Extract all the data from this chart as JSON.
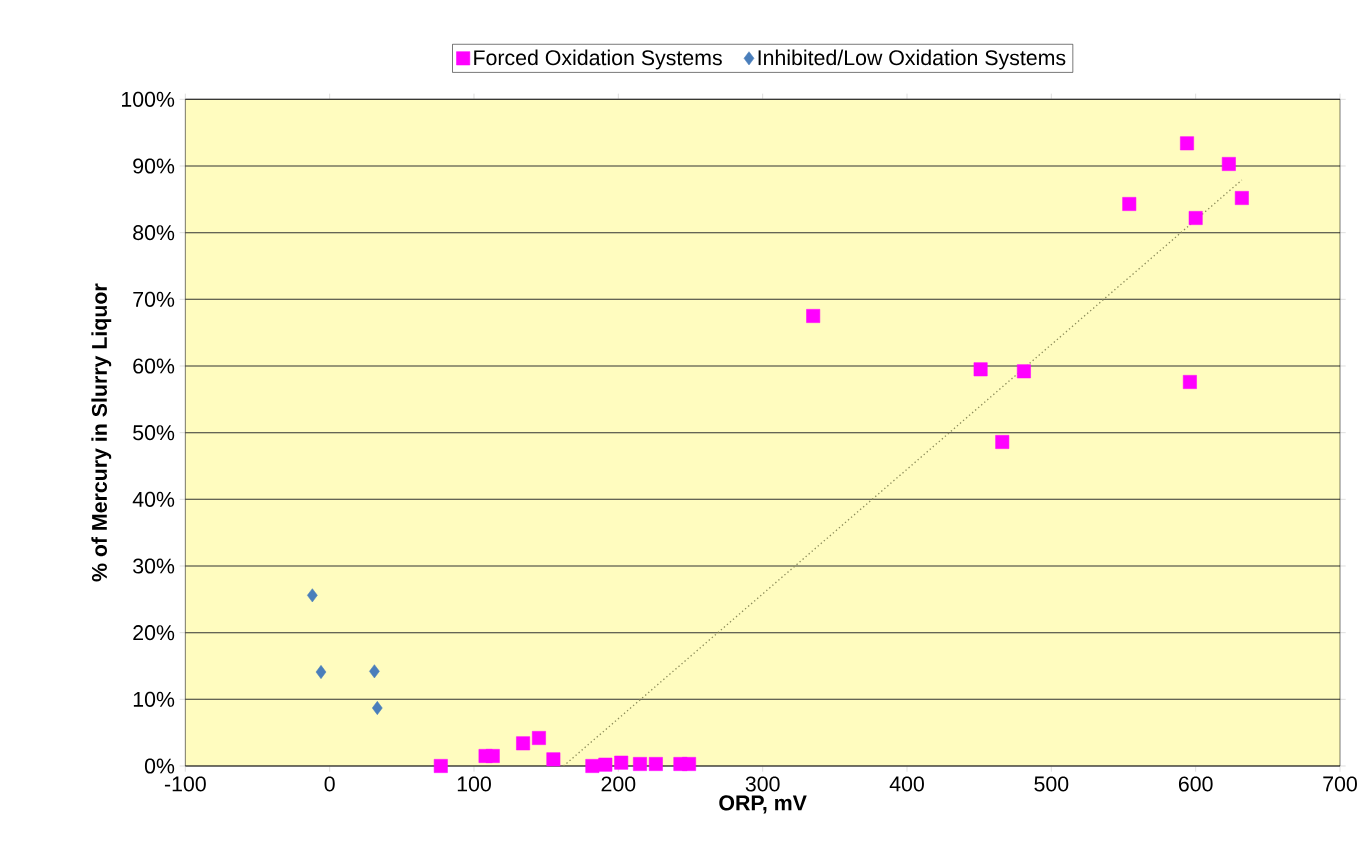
{
  "chart_data": {
    "type": "scatter",
    "xlabel": "ORP, mV",
    "ylabel": "% of Mercury in Slurry Liquor",
    "xlim": [
      -100,
      700
    ],
    "xticks": [
      -100,
      0,
      100,
      200,
      300,
      400,
      500,
      600,
      700
    ],
    "ylim": [
      0,
      100
    ],
    "yticks": [
      {
        "value": 0,
        "label": "0%"
      },
      {
        "value": 10,
        "label": "10%"
      },
      {
        "value": 20,
        "label": "20%"
      },
      {
        "value": 30,
        "label": "30%"
      },
      {
        "value": 40,
        "label": "40%"
      },
      {
        "value": 50,
        "label": "50%"
      },
      {
        "value": 60,
        "label": "60%"
      },
      {
        "value": 70,
        "label": "70%"
      },
      {
        "value": 80,
        "label": "80%"
      },
      {
        "value": 90,
        "label": "90%"
      },
      {
        "value": 100,
        "label": "100%"
      }
    ],
    "grid": "y",
    "legend": "top",
    "series": [
      {
        "name": "Forced Oxidation Systems",
        "color": "#ff00ff",
        "marker": "square",
        "x": [
          77,
          108,
          113,
          134,
          145,
          155,
          182,
          191,
          202,
          215,
          226,
          243,
          249,
          335,
          451,
          466,
          481,
          554,
          594,
          600,
          596,
          623,
          632
        ],
        "values": [
          0,
          1.5,
          1.5,
          3.4,
          4.2,
          1,
          0,
          0.2,
          0.5,
          0.3,
          0.3,
          0.3,
          0.3,
          67.5,
          59.5,
          48.6,
          59.2,
          84.3,
          93.4,
          82.2,
          57.6,
          90.3,
          85.2
        ]
      },
      {
        "name": "Inhibited/Low Oxidation Systems",
        "color": "#4a7ebb",
        "marker": "diamond",
        "x": [
          -12,
          -6,
          31,
          33
        ],
        "values": [
          25.6,
          14.1,
          14.2,
          8.7
        ]
      },
      {
        "type": "line",
        "color": "#8c8c5a",
        "line_style": "dotted",
        "marker": "none",
        "x": [
          162,
          632
        ],
        "values": [
          0,
          87.9
        ]
      }
    ]
  }
}
